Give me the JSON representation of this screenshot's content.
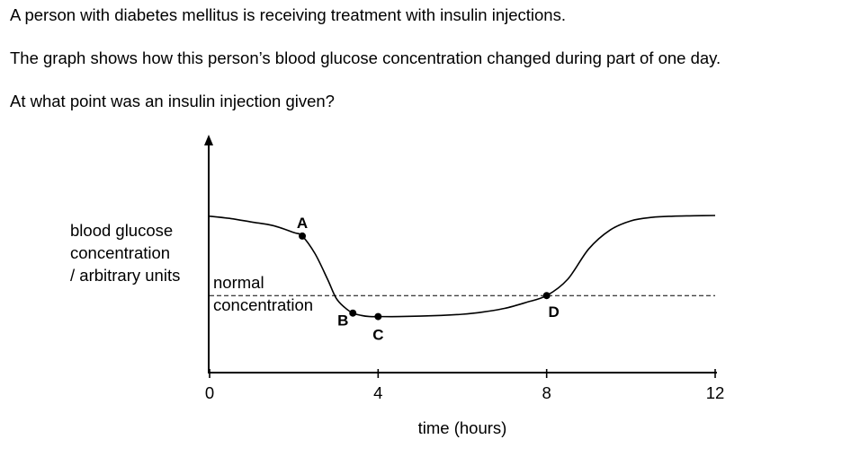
{
  "question": {
    "line1": "A person with diabetes mellitus is receiving treatment with insulin injections.",
    "line2": "The graph shows how this person’s blood glucose concentration changed during part of one day.",
    "line3": "At what point was an insulin injection given?"
  },
  "chart_data": {
    "type": "line",
    "xlabel": "time (hours)",
    "ylabel_lines": [
      "blood glucose",
      "concentration",
      "/ arbitrary units"
    ],
    "xlim": [
      0,
      12
    ],
    "ylim": [
      0,
      10
    ],
    "x_ticks": [
      0,
      4,
      8,
      12
    ],
    "grid": false,
    "normal_concentration": {
      "label_lines": [
        "normal",
        "concentration"
      ],
      "y": 3.3
    },
    "series": [
      {
        "x": [
          0,
          0.5,
          1,
          1.5,
          2,
          2.2,
          2.5,
          2.8,
          3.0,
          3.2,
          3.4,
          3.6,
          3.8,
          4.0,
          4.5,
          5,
          5.5,
          6,
          6.5,
          7,
          7.5,
          8,
          8.5,
          9,
          9.5,
          10,
          10.5,
          11,
          11.5,
          12
        ],
        "y": [
          6.7,
          6.6,
          6.45,
          6.3,
          6.0,
          5.85,
          5.1,
          4.0,
          3.2,
          2.8,
          2.55,
          2.45,
          2.4,
          2.4,
          2.4,
          2.42,
          2.45,
          2.5,
          2.6,
          2.75,
          3.0,
          3.3,
          4.0,
          5.3,
          6.1,
          6.5,
          6.65,
          6.7,
          6.72,
          6.73
        ]
      }
    ],
    "points": [
      {
        "label": "A",
        "x": 2.2,
        "y": 5.85
      },
      {
        "label": "B",
        "x": 3.4,
        "y": 2.55
      },
      {
        "label": "C",
        "x": 4.0,
        "y": 2.4
      },
      {
        "label": "D",
        "x": 8.0,
        "y": 3.3
      }
    ]
  }
}
